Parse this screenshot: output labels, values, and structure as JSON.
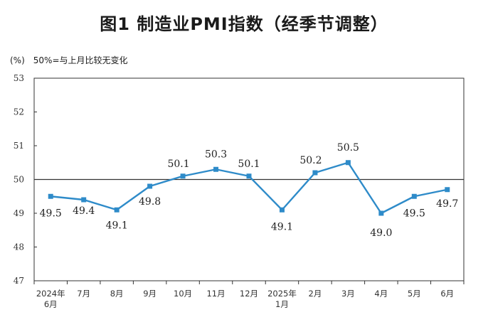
{
  "title": "图1 制造业PMI指数（经季节调整）",
  "note": {
    "unit": "(%)",
    "text": "50%=与上月比较无变化"
  },
  "chart_data": {
    "type": "line",
    "categories": [
      [
        "2024年",
        "6月"
      ],
      [
        "7月"
      ],
      [
        "8月"
      ],
      [
        "9月"
      ],
      [
        "10月"
      ],
      [
        "11月"
      ],
      [
        "12月"
      ],
      [
        "2025年",
        "1月"
      ],
      [
        "2月"
      ],
      [
        "3月"
      ],
      [
        "4月"
      ],
      [
        "5月"
      ],
      [
        "6月"
      ]
    ],
    "series": [
      {
        "values": [
          49.5,
          49.4,
          49.1,
          49.8,
          50.1,
          50.3,
          50.1,
          49.1,
          50.2,
          50.5,
          49.0,
          49.5,
          49.7
        ]
      }
    ],
    "data_labels": [
      "49.5",
      "49.4",
      "49.1",
      "49.8",
      "50.1",
      "50.3",
      "50.1",
      "49.1",
      "50.2",
      "50.5",
      "49.0",
      "49.5",
      "49.7"
    ],
    "yticks": [
      "53",
      "52",
      "51",
      "50",
      "49",
      "48",
      "47"
    ],
    "ylim": [
      47,
      53
    ],
    "reference_line": 50,
    "grid": false,
    "series_color": "#2e8bc9",
    "axis_color": "#333333"
  }
}
